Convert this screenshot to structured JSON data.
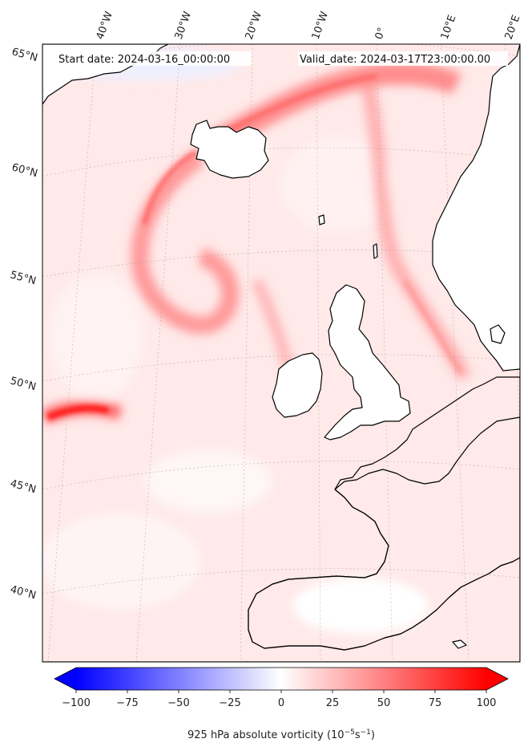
{
  "header": {
    "start_date": "Start date: 2024-03-16_00:00:00",
    "valid_date": "Valid_date: 2024-03-17T23:00:00.00"
  },
  "map": {
    "longitude_labels": [
      "40°W",
      "30°W",
      "20°W",
      "10°W",
      "0°",
      "10°E",
      "20°E"
    ],
    "latitude_labels": [
      "65°N",
      "60°N",
      "55°N",
      "50°N",
      "45°N",
      "40°N"
    ]
  },
  "colorbar": {
    "min": -100,
    "max": 100,
    "ticks": [
      "−100",
      "−75",
      "−50",
      "−25",
      "0",
      "25",
      "50",
      "75",
      "100"
    ],
    "label_main": "925 hPa absolute vorticity (10",
    "label_exp1": "−5",
    "label_mid": "s",
    "label_exp2": "−1",
    "label_end": ")",
    "neg_color": "#0000ff",
    "zero_color": "#ffffff",
    "pos_color": "#ff0000"
  }
}
